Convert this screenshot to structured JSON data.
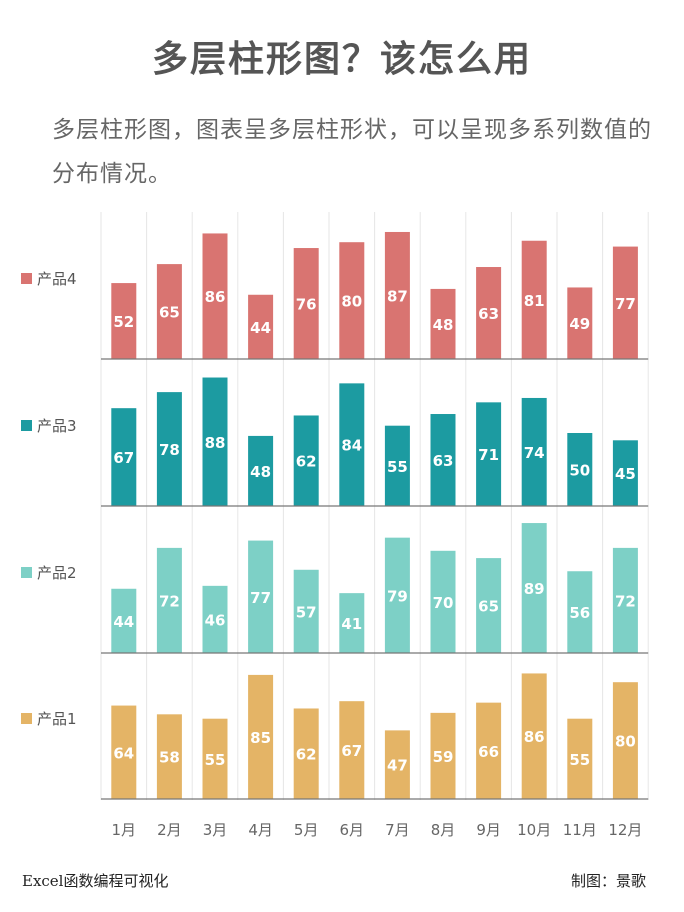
{
  "header": {
    "title": "多层柱形图？该怎么用",
    "description": "多层柱形图，图表呈多层柱形状，可以呈现多系列数值的分布情况。"
  },
  "footer": {
    "left": "Excel函数编程可视化",
    "right": "制图：景歌"
  },
  "chart_data": {
    "type": "bar",
    "layout": "stacked-panels",
    "categories": [
      "1月",
      "2月",
      "3月",
      "4月",
      "5月",
      "6月",
      "7月",
      "8月",
      "9月",
      "10月",
      "11月",
      "12月"
    ],
    "ylim": [
      0,
      100
    ],
    "grid": "vertical",
    "legend": "left",
    "series": [
      {
        "name": "产品4",
        "color": "#d97471",
        "values": [
          52,
          65,
          86,
          44,
          76,
          80,
          87,
          48,
          63,
          81,
          49,
          77
        ]
      },
      {
        "name": "产品3",
        "color": "#1c9ba1",
        "values": [
          67,
          78,
          88,
          48,
          62,
          84,
          55,
          63,
          71,
          74,
          50,
          45
        ]
      },
      {
        "name": "产品2",
        "color": "#7dd0c6",
        "values": [
          44,
          72,
          46,
          77,
          57,
          41,
          79,
          70,
          65,
          89,
          56,
          72
        ]
      },
      {
        "name": "产品1",
        "color": "#e4b466",
        "values": [
          64,
          58,
          55,
          85,
          62,
          67,
          47,
          59,
          66,
          86,
          55,
          80
        ]
      }
    ]
  }
}
